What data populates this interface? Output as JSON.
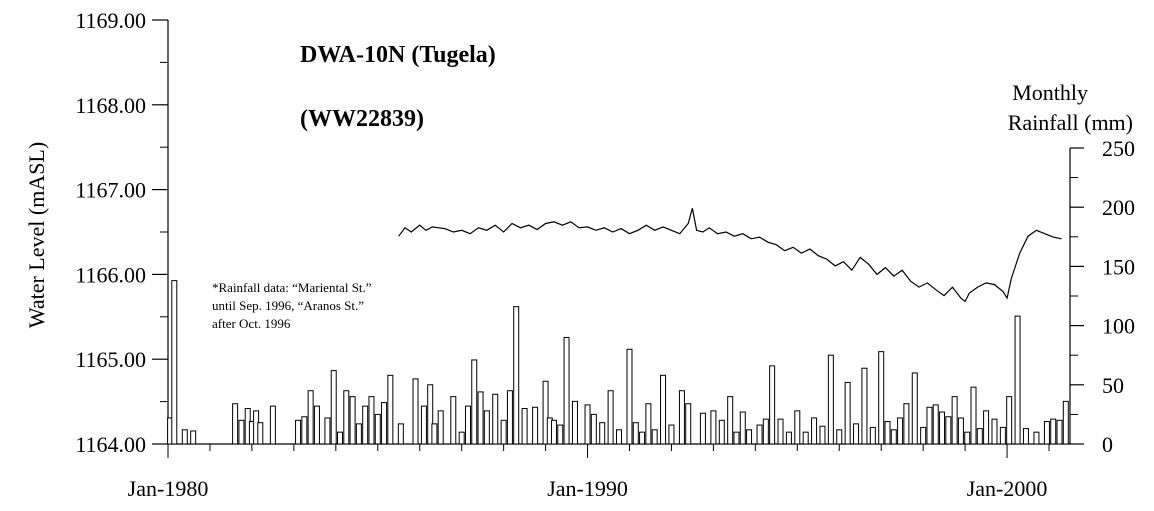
{
  "chart_data": {
    "type": "line",
    "title": "DWA-10N (Tugela)",
    "subtitle": "(WW22839)",
    "ylabel": "Water Level (mASL)",
    "y2label_line1": "Monthly",
    "y2label_line2": "Rainfall (mm)",
    "note": [
      "*Rainfall data: “Mariental St.”",
      "until Sep. 1996,    “Aranos St.”",
      "after Oct. 1996"
    ],
    "ylim": [
      1164.0,
      1169.0
    ],
    "y2lim": [
      0,
      250
    ],
    "xlim": [
      1980.0,
      2001.5
    ],
    "y_ticks": [
      "1164.00",
      "1165.00",
      "1166.00",
      "1167.00",
      "1168.00",
      "1169.00"
    ],
    "y2_ticks": [
      "0",
      "50",
      "100",
      "150",
      "200",
      "250"
    ],
    "x_ticks": [
      {
        "x": 1980,
        "label": "Jan-1980"
      },
      {
        "x": 1990,
        "label": "Jan-1990"
      },
      {
        "x": 2000,
        "label": "Jan-2000"
      }
    ],
    "series": [
      {
        "kind": "line",
        "axis": "left",
        "x": [
          1985.5,
          1985.65,
          1985.8,
          1986.0,
          1986.15,
          1986.3,
          1986.45,
          1986.6,
          1986.8,
          1987.0,
          1987.2,
          1987.4,
          1987.6,
          1987.8,
          1988.0,
          1988.2,
          1988.4,
          1988.6,
          1988.8,
          1989.0,
          1989.2,
          1989.4,
          1989.6,
          1989.8,
          1990.0,
          1990.2,
          1990.4,
          1990.6,
          1990.8,
          1991.0,
          1991.2,
          1991.4,
          1991.6,
          1991.8,
          1992.0,
          1992.2,
          1992.4,
          1992.5,
          1992.6,
          1992.75,
          1992.9,
          1993.1,
          1993.3,
          1993.5,
          1993.7,
          1993.9,
          1994.1,
          1994.3,
          1994.5,
          1994.7,
          1994.9,
          1995.1,
          1995.3,
          1995.5,
          1995.7,
          1995.9,
          1996.1,
          1996.3,
          1996.5,
          1996.7,
          1996.9,
          1997.1,
          1997.3,
          1997.5,
          1997.7,
          1997.9,
          1998.1,
          1998.3,
          1998.5,
          1998.7,
          1998.9,
          1999.0,
          1999.1,
          1999.3,
          1999.5,
          1999.7,
          1999.9,
          2000.0,
          2000.1,
          2000.3,
          2000.5,
          2000.7,
          2000.9,
          2001.1,
          2001.3
        ],
        "y": [
          1166.45,
          1166.55,
          1166.5,
          1166.58,
          1166.52,
          1166.56,
          1166.55,
          1166.54,
          1166.5,
          1166.52,
          1166.48,
          1166.55,
          1166.52,
          1166.58,
          1166.5,
          1166.6,
          1166.55,
          1166.58,
          1166.53,
          1166.6,
          1166.62,
          1166.58,
          1166.62,
          1166.55,
          1166.56,
          1166.52,
          1166.55,
          1166.5,
          1166.54,
          1166.48,
          1166.52,
          1166.58,
          1166.52,
          1166.56,
          1166.52,
          1166.48,
          1166.6,
          1166.78,
          1166.52,
          1166.5,
          1166.55,
          1166.48,
          1166.5,
          1166.45,
          1166.48,
          1166.42,
          1166.44,
          1166.38,
          1166.35,
          1166.28,
          1166.32,
          1166.25,
          1166.3,
          1166.22,
          1166.18,
          1166.1,
          1166.15,
          1166.05,
          1166.2,
          1166.12,
          1166.0,
          1166.08,
          1165.98,
          1166.05,
          1165.92,
          1165.85,
          1165.9,
          1165.82,
          1165.75,
          1165.85,
          1165.72,
          1165.68,
          1165.78,
          1165.85,
          1165.9,
          1165.88,
          1165.8,
          1165.72,
          1165.95,
          1166.25,
          1166.45,
          1166.52,
          1166.48,
          1166.44,
          1166.42
        ]
      },
      {
        "kind": "bar",
        "axis": "right",
        "x": [
          1980.05,
          1980.15,
          1980.4,
          1980.6,
          1981.6,
          1981.75,
          1981.9,
          1982.0,
          1982.1,
          1982.2,
          1982.5,
          1983.1,
          1983.25,
          1983.4,
          1983.55,
          1983.8,
          1983.95,
          1984.1,
          1984.25,
          1984.4,
          1984.55,
          1984.7,
          1984.85,
          1985.0,
          1985.15,
          1985.3,
          1985.55,
          1985.9,
          1986.1,
          1986.25,
          1986.35,
          1986.5,
          1986.8,
          1987.0,
          1987.15,
          1987.3,
          1987.45,
          1987.6,
          1987.8,
          1988.0,
          1988.15,
          1988.3,
          1988.5,
          1988.75,
          1989.0,
          1989.1,
          1989.2,
          1989.35,
          1989.5,
          1989.7,
          1990.0,
          1990.15,
          1990.35,
          1990.55,
          1990.75,
          1991.0,
          1991.15,
          1991.3,
          1991.45,
          1991.6,
          1991.8,
          1992.0,
          1992.25,
          1992.4,
          1992.75,
          1993.0,
          1993.2,
          1993.4,
          1993.55,
          1993.7,
          1993.85,
          1994.1,
          1994.25,
          1994.4,
          1994.6,
          1994.8,
          1995.0,
          1995.2,
          1995.4,
          1995.6,
          1995.8,
          1996.0,
          1996.2,
          1996.4,
          1996.6,
          1996.8,
          1997.0,
          1997.15,
          1997.3,
          1997.45,
          1997.6,
          1997.8,
          1998.0,
          1998.15,
          1998.3,
          1998.45,
          1998.6,
          1998.75,
          1998.9,
          1999.05,
          1999.2,
          1999.35,
          1999.5,
          1999.7,
          1999.9,
          2000.05,
          2000.25,
          2000.45,
          2000.7,
          2000.95,
          2001.1,
          2001.25,
          2001.4
        ],
        "y": [
          22,
          138,
          12,
          11,
          34,
          20,
          30,
          19,
          28,
          18,
          32,
          20,
          23,
          45,
          32,
          22,
          62,
          10,
          45,
          40,
          17,
          32,
          40,
          25,
          35,
          58,
          17,
          55,
          32,
          50,
          17,
          28,
          40,
          10,
          32,
          71,
          44,
          28,
          42,
          20,
          45,
          116,
          30,
          31,
          53,
          22,
          20,
          16,
          90,
          36,
          33,
          25,
          18,
          45,
          12,
          80,
          18,
          10,
          34,
          12,
          58,
          16,
          45,
          34,
          26,
          28,
          20,
          40,
          10,
          27,
          12,
          16,
          21,
          66,
          21,
          10,
          28,
          10,
          22,
          15,
          75,
          12,
          52,
          17,
          64,
          14,
          78,
          19,
          12,
          22,
          34,
          60,
          14,
          31,
          33,
          27,
          23,
          40,
          22,
          10,
          48,
          13,
          28,
          21,
          14,
          40,
          108,
          13,
          10,
          19,
          21,
          20,
          36
        ]
      }
    ]
  }
}
